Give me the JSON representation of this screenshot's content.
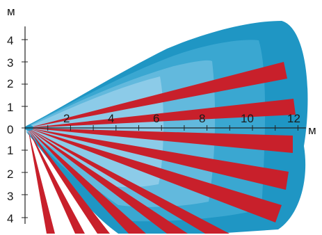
{
  "diagram": {
    "y_unit": "м",
    "x_unit": "м",
    "x_ticks": [
      "2",
      "4",
      "6",
      "8",
      "10",
      "12"
    ],
    "y_ticks_up": [
      "4",
      "3",
      "2",
      "1"
    ],
    "y_zero": "0",
    "y_ticks_down": [
      "1",
      "2",
      "3",
      "4"
    ]
  },
  "colors": {
    "zone_outer": "#1f96c4",
    "zone_mid": "#3aa7d1",
    "zone_inner": "#62b9dd",
    "zone_core": "#8ccbe8",
    "beam": "#c8202b",
    "axis": "#222222"
  }
}
